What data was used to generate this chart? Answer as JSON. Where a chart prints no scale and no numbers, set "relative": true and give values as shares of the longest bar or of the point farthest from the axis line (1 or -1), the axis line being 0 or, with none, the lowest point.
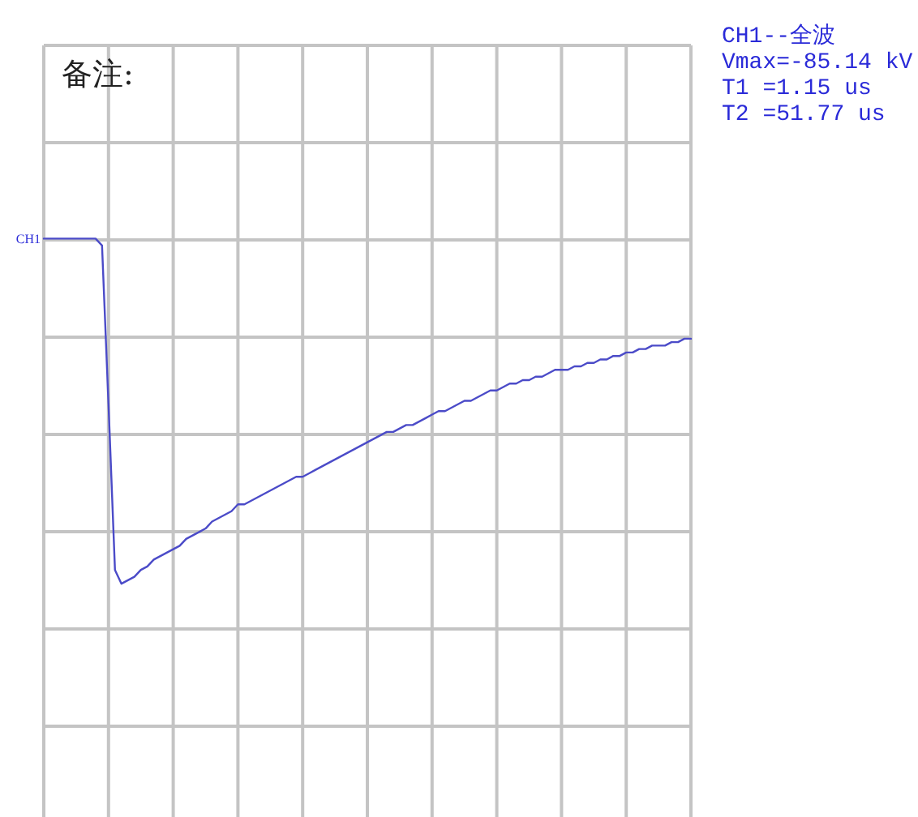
{
  "chart_data": {
    "type": "line",
    "relative": true,
    "grid": true,
    "line_style": "solid",
    "marker": "none",
    "categories": [
      null,
      null,
      null,
      null,
      null,
      null,
      null,
      null,
      null,
      null,
      null,
      null,
      null,
      null,
      null,
      null,
      null,
      null,
      null,
      null,
      null,
      null,
      null,
      null,
      null,
      null,
      null,
      null,
      null,
      null,
      null,
      null,
      null,
      null,
      null,
      null,
      null,
      null,
      null,
      null,
      null,
      null,
      null,
      null,
      null,
      null,
      null,
      null,
      null,
      null,
      null,
      null,
      null,
      null,
      null,
      null,
      null,
      null,
      null,
      null,
      null,
      null,
      null,
      null,
      null,
      null,
      null,
      null,
      null,
      null,
      null,
      null,
      null,
      null,
      null,
      null,
      null,
      null,
      null,
      null,
      null,
      null,
      null,
      null,
      null,
      null,
      null,
      null,
      null,
      null,
      null,
      null,
      null,
      null,
      null,
      null,
      null,
      null,
      null,
      null,
      null
    ],
    "series": [
      {
        "color": "#4b4bc8",
        "values": [
          0,
          0,
          0,
          0,
          0,
          0,
          0,
          0,
          0,
          -0.02,
          -0.48,
          -0.96,
          -1,
          -0.99,
          -0.98,
          -0.96,
          -0.95,
          -0.93,
          -0.92,
          -0.91,
          -0.9,
          -0.89,
          -0.87,
          -0.86,
          -0.85,
          -0.84,
          -0.82,
          -0.81,
          -0.8,
          -0.79,
          -0.77,
          -0.77,
          -0.76,
          -0.75,
          -0.74,
          -0.73,
          -0.72,
          -0.71,
          -0.7,
          -0.69,
          -0.69,
          -0.68,
          -0.67,
          -0.66,
          -0.65,
          -0.64,
          -0.63,
          -0.62,
          -0.61,
          -0.6,
          -0.59,
          -0.58,
          -0.57,
          -0.56,
          -0.56,
          -0.55,
          -0.54,
          -0.54,
          -0.53,
          -0.52,
          -0.51,
          -0.5,
          -0.5,
          -0.49,
          -0.48,
          -0.47,
          -0.47,
          -0.46,
          -0.45,
          -0.44,
          -0.44,
          -0.43,
          -0.42,
          -0.42,
          -0.41,
          -0.41,
          -0.4,
          -0.4,
          -0.39,
          -0.38,
          -0.38,
          -0.38,
          -0.37,
          -0.37,
          -0.36,
          -0.36,
          -0.35,
          -0.35,
          -0.34,
          -0.34,
          -0.33,
          -0.33,
          -0.32,
          -0.32,
          -0.31,
          -0.31,
          -0.31,
          -0.3,
          -0.3,
          -0.29,
          -0.29
        ]
      }
    ],
    "annotations": [
      "备注:",
      "CH1--全波",
      "Vmax=-85.14 kV",
      "T1 =1.15 us",
      "T2 =51.77 us",
      "CH1"
    ]
  }
}
